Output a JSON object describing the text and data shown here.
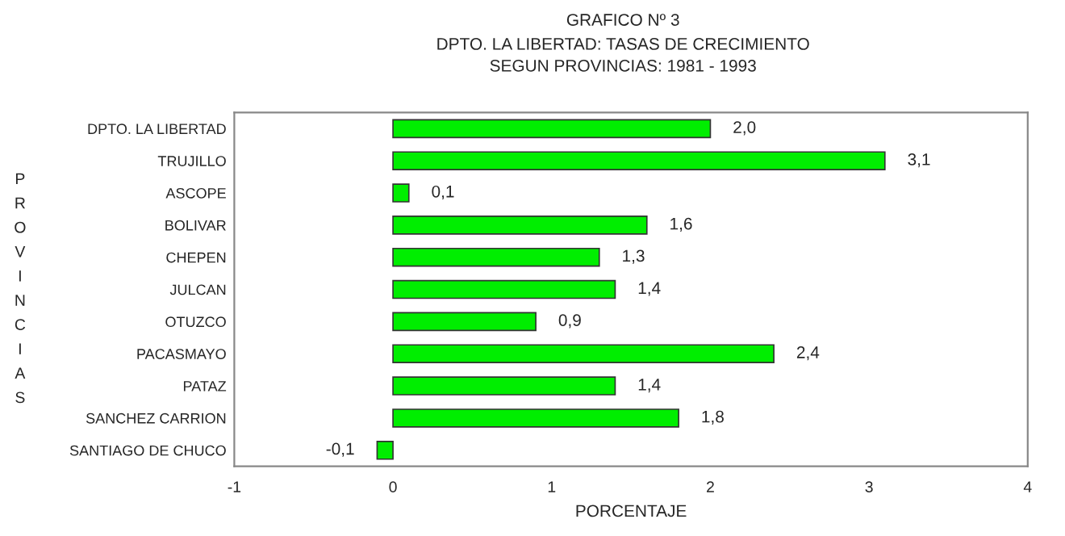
{
  "chart_data": {
    "type": "bar",
    "orientation": "horizontal",
    "title": "GRAFICO Nº 3",
    "subtitle": "DPTO. LA LIBERTAD: TASAS DE CRECIMIENTO\nSEGUN PROVINCIAS: 1981 - 1993",
    "categories": [
      "DPTO. LA LIBERTAD",
      "TRUJILLO",
      "ASCOPE",
      "BOLIVAR",
      "CHEPEN",
      "JULCAN",
      "OTUZCO",
      "PACASMAYO",
      "PATAZ",
      "SANCHEZ CARRION",
      "SANTIAGO DE CHUCO"
    ],
    "values": [
      2.0,
      3.1,
      0.1,
      1.6,
      1.3,
      1.4,
      0.9,
      2.4,
      1.4,
      1.8,
      -0.1
    ],
    "value_labels": [
      "2,0",
      "3,1",
      "0,1",
      "1,6",
      "1,3",
      "1,4",
      "0,9",
      "2,4",
      "1,4",
      "1,8",
      "-0,1"
    ],
    "color": "#00ee00",
    "xlabel": "PORCENTAJE",
    "ylabel": "PROVINCIAS",
    "xlim": [
      -1,
      4
    ],
    "xticks": [
      -1,
      0,
      1,
      2,
      3,
      4
    ],
    "grid": false,
    "legend": false
  }
}
